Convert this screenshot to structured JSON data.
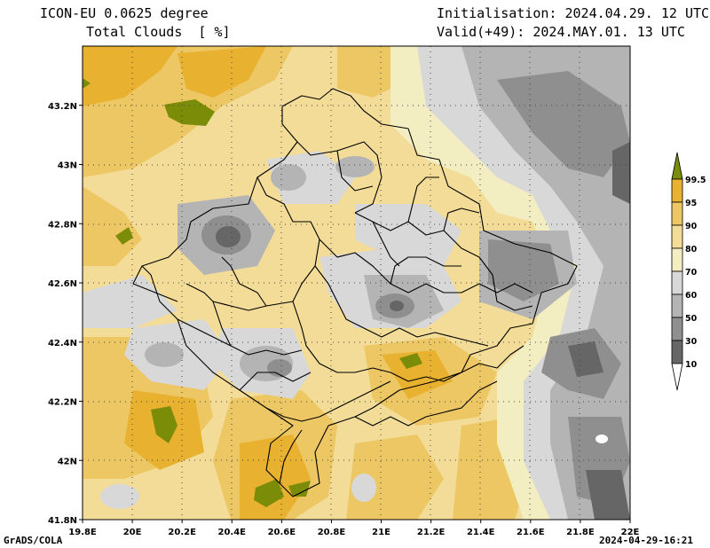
{
  "header": {
    "model": "ICON-EU 0.0625 degree",
    "variable": "Total Clouds  [ %]",
    "init": "Initialisation: 2024.04.29. 12 UTC",
    "valid": "Valid(+49): 2024.MAY.01. 13 UTC"
  },
  "footer": {
    "software": "GrADS/COLA",
    "timestamp": "2024-04-29-16:21"
  },
  "map": {
    "lat_labels": [
      "43.2N",
      "43N",
      "42.8N",
      "42.6N",
      "42.4N",
      "42.2N",
      "42N",
      "41.8N"
    ],
    "lon_labels": [
      "19.8E",
      "20E",
      "20.2E",
      "20.4E",
      "20.6E",
      "20.8E",
      "21E",
      "21.2E",
      "21.4E",
      "21.6E",
      "21.8E",
      "22E"
    ],
    "extent": {
      "lon": [
        19.8,
        22.0
      ],
      "lat": [
        41.8,
        43.4
      ]
    }
  },
  "colorbar": {
    "labels": [
      "99.5",
      "95",
      "90",
      "80",
      "70",
      "60",
      "50",
      "30",
      "10"
    ],
    "colors": [
      "#7a8c08",
      "#e8b12f",
      "#edc763",
      "#f2dc98",
      "#f2eec1",
      "#d8d8d8",
      "#b4b4b4",
      "#8f8f8f",
      "#666666",
      "#ffffff"
    ]
  },
  "palette": {
    "ocean_gold": "#e8b12f",
    "light_gold": "#edc763",
    "cream": "#f2dc98",
    "pale": "#f2eec1",
    "light_grey": "#d8d8d8",
    "mid_grey": "#b4b4b4",
    "dark_grey": "#8f8f8f",
    "darkest": "#666666",
    "olive": "#7a8c08",
    "border": "#000000"
  }
}
